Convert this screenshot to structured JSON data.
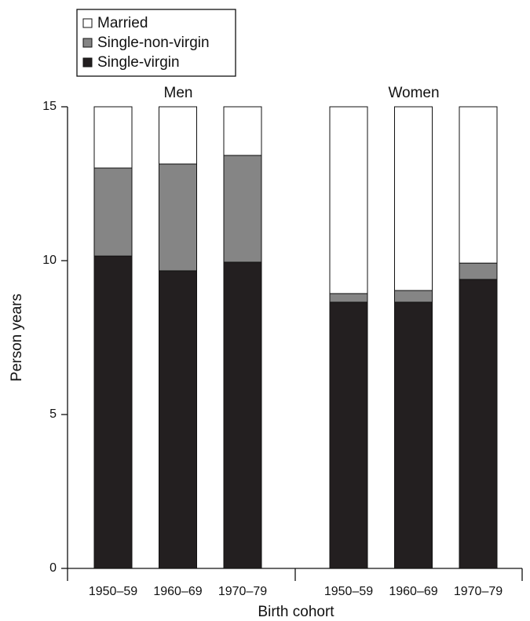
{
  "chart_data": {
    "type": "stacked-bar",
    "groups": [
      {
        "name": "Men",
        "categories": [
          "1950–59",
          "1960–69",
          "1970–79"
        ]
      },
      {
        "name": "Women",
        "categories": [
          "1950–59",
          "1960–69",
          "1970–79"
        ]
      }
    ],
    "series": [
      {
        "name": "Single-virgin",
        "color": "#231f20",
        "values": [
          10.15,
          9.67,
          9.95,
          8.65,
          8.65,
          9.39
        ]
      },
      {
        "name": "Single-non-virgin",
        "color": "#858585",
        "values": [
          2.86,
          3.47,
          3.47,
          0.28,
          0.38,
          0.53
        ]
      },
      {
        "name": "Married",
        "color": "#ffffff",
        "values": [
          1.99,
          1.86,
          1.58,
          6.07,
          5.97,
          5.08
        ]
      }
    ],
    "x_label": "Birth cohort",
    "y_label": "Person years",
    "ylim": [
      0,
      15
    ],
    "yticks": [
      0,
      5,
      10,
      15
    ],
    "legend": "top-left"
  }
}
